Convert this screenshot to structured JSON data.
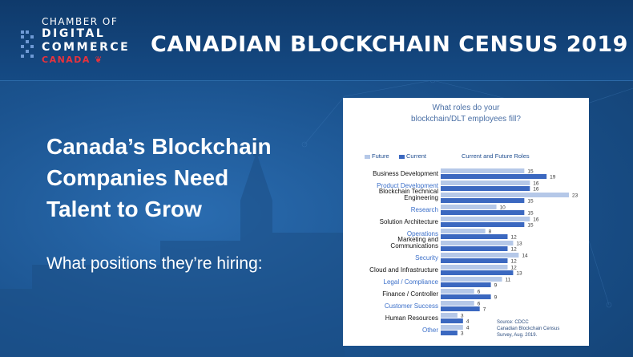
{
  "header": {
    "logo": {
      "line1": "CHAMBER OF",
      "line2": "DIGITAL",
      "line3": "COMMERCE",
      "line4": "CANADA"
    },
    "title": "CANADIAN BLOCKCHAIN CENSUS 2019"
  },
  "main": {
    "headline_lines": [
      "Canada’s Blockchain",
      "Companies Need",
      "Talent to Grow"
    ],
    "subhead": "What positions they’re hiring:"
  },
  "colors": {
    "future": "#b5c8e8",
    "current": "#3b68c0",
    "accent_label": "#3b6fc9",
    "header_bg": "#0f3a6b"
  },
  "chart_data": {
    "type": "bar",
    "orientation": "horizontal",
    "title_lines": [
      "What roles do your",
      "blockchain/DLT employees fill?"
    ],
    "legend_title": "Current and Future Roles",
    "categories": [
      "Business Development",
      "Product Development",
      "Blockchain Technical Engineering",
      "Research",
      "Solution Architecture",
      "Operations",
      "Marketing and Communications",
      "Security",
      "Cloud and Infrastructure",
      "Legal / Compliance",
      "Finance / Controller",
      "Customer Success",
      "Human Resources",
      "Other"
    ],
    "category_label_lines": [
      [
        "Business Development"
      ],
      [
        "Product Development"
      ],
      [
        "Blockchain Technical",
        "Engineering"
      ],
      [
        "Research"
      ],
      [
        "Solution Architecture"
      ],
      [
        "Operations"
      ],
      [
        "Marketing and",
        "Communications"
      ],
      [
        "Security"
      ],
      [
        "Cloud and Infrastructure"
      ],
      [
        "Legal / Compliance"
      ],
      [
        "Finance / Controller"
      ],
      [
        "Customer Success"
      ],
      [
        "Human Resources"
      ],
      [
        "Other"
      ]
    ],
    "category_label_accent": [
      false,
      true,
      false,
      true,
      false,
      true,
      false,
      true,
      false,
      true,
      false,
      true,
      false,
      true
    ],
    "series": [
      {
        "name": "Future",
        "values": [
          15,
          16,
          23,
          10,
          16,
          8,
          13,
          14,
          12,
          11,
          6,
          6,
          3,
          4
        ]
      },
      {
        "name": "Current",
        "values": [
          19,
          16,
          15,
          15,
          15,
          12,
          12,
          12,
          13,
          9,
          9,
          7,
          4,
          3
        ]
      }
    ],
    "xlim": [
      0,
      23
    ],
    "source_lines": [
      "Source: CDCC",
      "Canadian Blockchain Census",
      "Survey, Aug. 2019."
    ]
  }
}
